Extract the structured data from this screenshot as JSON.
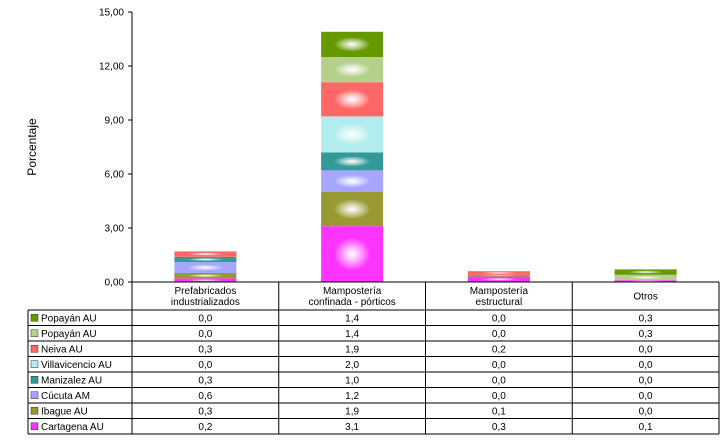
{
  "chart_data": {
    "type": "bar",
    "stacked": true,
    "title": "",
    "ylabel": "Porcentaje",
    "ylim": [
      0,
      15
    ],
    "yticks": [
      "0,00",
      "3,00",
      "6,00",
      "9,00",
      "12,00",
      "15,00"
    ],
    "ytick_values": [
      0,
      3,
      6,
      9,
      12,
      15
    ],
    "categories": [
      [
        "Prefabricados",
        "industrializados"
      ],
      [
        "Mampostería",
        "confinada - pórticos"
      ],
      [
        "Mampostería",
        "estructural"
      ],
      [
        "Otros"
      ]
    ],
    "series": [
      {
        "name": "Cartagena AU",
        "values": [
          0.2,
          3.1,
          0.3,
          0.1
        ],
        "labels": [
          "0,2",
          "3,1",
          "0,3",
          "0,1"
        ],
        "color": "#ff33ff"
      },
      {
        "name": "Ibague AU",
        "values": [
          0.3,
          1.9,
          0.1,
          0.0
        ],
        "labels": [
          "0,3",
          "1,9",
          "0,1",
          "0,0"
        ],
        "color": "#999933"
      },
      {
        "name": "Cúcuta AM",
        "values": [
          0.6,
          1.2,
          0.0,
          0.0
        ],
        "labels": [
          "0,6",
          "1,2",
          "0,0",
          "0,0"
        ],
        "color": "#a6a6ff"
      },
      {
        "name": "Manizalez AU",
        "values": [
          0.3,
          1.0,
          0.0,
          0.0
        ],
        "labels": [
          "0,3",
          "1,0",
          "0,0",
          "0,0"
        ],
        "color": "#339999"
      },
      {
        "name": "Villavicencio AU",
        "values": [
          0.0,
          2.0,
          0.0,
          0.0
        ],
        "labels": [
          "0,0",
          "2,0",
          "0,0",
          "0,0"
        ],
        "color": "#b3ecec"
      },
      {
        "name": "Neiva AU",
        "values": [
          0.3,
          1.9,
          0.2,
          0.0
        ],
        "labels": [
          "0,3",
          "1,9",
          "0,2",
          "0,0"
        ],
        "color": "#ff6666"
      },
      {
        "name": "Popayán AU",
        "values": [
          0.0,
          1.4,
          0.0,
          0.3
        ],
        "labels": [
          "0,0",
          "1,4",
          "0,0",
          "0,3"
        ],
        "color": "#b3d18a"
      },
      {
        "name": "Popayán AU",
        "values": [
          0.0,
          1.4,
          0.0,
          0.3
        ],
        "labels": [
          "0,0",
          "1,4",
          "0,0",
          "0,3"
        ],
        "color": "#669900"
      }
    ]
  }
}
